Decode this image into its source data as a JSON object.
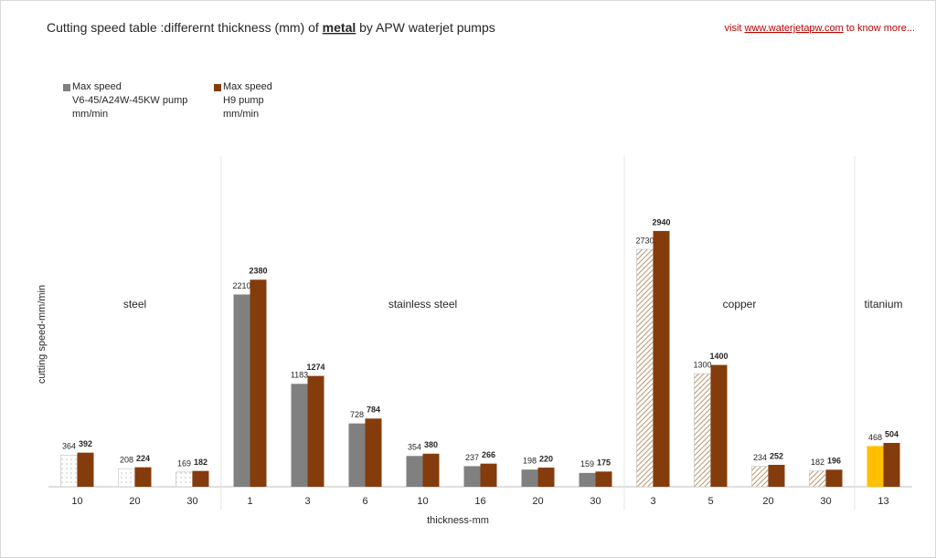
{
  "chart_data": {
    "type": "bar",
    "title_prefix": "Cutting speed table :differernt thickness (mm) of",
    "title_emphasis": "metal",
    "title_suffix": "by APW waterjet pumps",
    "link_prefix": "visit",
    "link": "www.waterjetapw.com",
    "link_suffix": "to know more...",
    "y_label": "cutting speed-mm/min",
    "x_label": "thickness-mm",
    "groups": [
      {
        "name": "steel",
        "categories": [
          "10",
          "20",
          "30"
        ],
        "pattern": "dots"
      },
      {
        "name": "stainless steel",
        "categories": [
          "1",
          "3",
          "6",
          "10",
          "16",
          "20",
          "30"
        ],
        "color": "#808080"
      },
      {
        "name": "copper",
        "categories": [
          "3",
          "5",
          "20",
          "30"
        ],
        "pattern": "hatch"
      },
      {
        "name": "titanium",
        "categories": [
          "13"
        ],
        "color": "#ffc000"
      }
    ],
    "series": [
      {
        "name": "Max speed\nV6-45/A24W-45KW  pump\nmm/min",
        "color": "#808080",
        "values": [
          364,
          208,
          169,
          2210,
          1183,
          728,
          354,
          237,
          198,
          159,
          2730,
          1300,
          234,
          182,
          468
        ]
      },
      {
        "name": "Max speed\nH9  pump\nmm/min",
        "color": "#843c0c",
        "values": [
          392,
          224,
          182,
          2380,
          1274,
          784,
          380,
          266,
          220,
          175,
          2940,
          1400,
          252,
          196,
          504
        ]
      }
    ],
    "ylim": [
      0,
      3800
    ]
  }
}
